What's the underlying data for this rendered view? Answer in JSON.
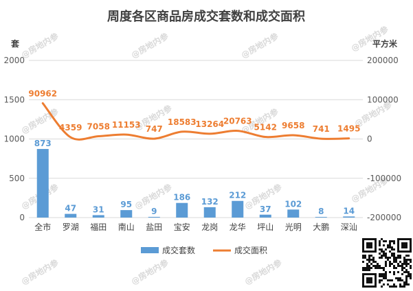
{
  "chart_data": {
    "type": "bar",
    "title": "周度各区商品房成交套数和成交面积",
    "left_unit": "套",
    "right_unit": "平方米",
    "categories": [
      "全市",
      "罗湖",
      "福田",
      "南山",
      "盐田",
      "宝安",
      "龙岗",
      "龙华",
      "坪山",
      "光明",
      "大鹏",
      "深汕"
    ],
    "left_axis": {
      "min": 0,
      "max": 2000,
      "ticks": [
        "0",
        "500",
        "1000",
        "1500",
        "2000"
      ]
    },
    "right_axis": {
      "min": -200000,
      "max": 200000,
      "ticks": [
        "-200000",
        "-100000",
        "0",
        "100000",
        "200000"
      ]
    },
    "grid": true,
    "legend_position": "bottom",
    "series": [
      {
        "name": "成交套数",
        "kind": "bar",
        "axis": "left",
        "color": "#5b9bd5",
        "values": [
          873,
          47,
          31,
          95,
          9,
          186,
          132,
          212,
          37,
          102,
          8,
          14
        ]
      },
      {
        "name": "成交面积",
        "kind": "line",
        "axis": "right",
        "color": "#ed7d31",
        "values": [
          90962,
          4359,
          7058,
          11153,
          747,
          18583,
          13264,
          20763,
          5142,
          9658,
          741,
          1495
        ]
      }
    ]
  },
  "watermark": "@房地内参",
  "qr_icon": "qr-code-icon"
}
